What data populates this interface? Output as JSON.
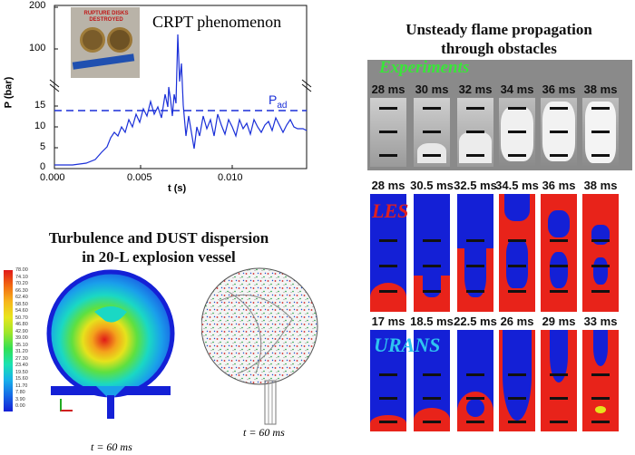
{
  "crpt": {
    "title": "CRPT phenomenon",
    "photo_label": "RUPTURE DISKS DESTROYED",
    "y_axis_label": "P (bar)",
    "x_axis_label": "t (s)",
    "pad_label": "P",
    "pad_sub": "ad",
    "y_ticks": [
      "200",
      "100",
      "15",
      "10",
      "5",
      "0"
    ],
    "x_ticks": [
      "0.000",
      "0.005",
      "0.010"
    ]
  },
  "dust": {
    "title_line1": "Turbulence and DUST dispersion",
    "title_line2": "in 20-L explosion vessel",
    "caption_left": "t = 60 ms",
    "caption_right": "t = 60 ms",
    "colorbar": [
      "78.00",
      "74.10",
      "70.20",
      "66.30",
      "62.40",
      "58.50",
      "54.60",
      "50.70",
      "46.80",
      "42.90",
      "39.00",
      "35.10",
      "31.20",
      "27.30",
      "23.40",
      "19.50",
      "15.60",
      "11.70",
      "7.80",
      "3.90",
      "0.00"
    ]
  },
  "flame": {
    "title_line1": "Unsteady flame propagation",
    "title_line2": "through obstacles",
    "row_experiments": "Experiments",
    "row_les": "LES",
    "row_urans": "URANS",
    "times_exp": [
      "28 ms",
      "30 ms",
      "32 ms",
      "34 ms",
      "36 ms",
      "38 ms"
    ],
    "times_les": [
      "28 ms",
      "30.5 ms",
      "32.5 ms",
      "34.5 ms",
      "36 ms",
      "38 ms"
    ],
    "times_urans": [
      "17 ms",
      "18.5 ms",
      "22.5 ms",
      "26 ms",
      "29 ms",
      "33 ms"
    ]
  },
  "colors": {
    "les_red": "#e8231a",
    "les_blue": "#1420d6",
    "exp_label": "#39e639",
    "urans_label": "#2ec4f0",
    "les_label": "#e02020",
    "curve": "#1a2fd8"
  }
}
